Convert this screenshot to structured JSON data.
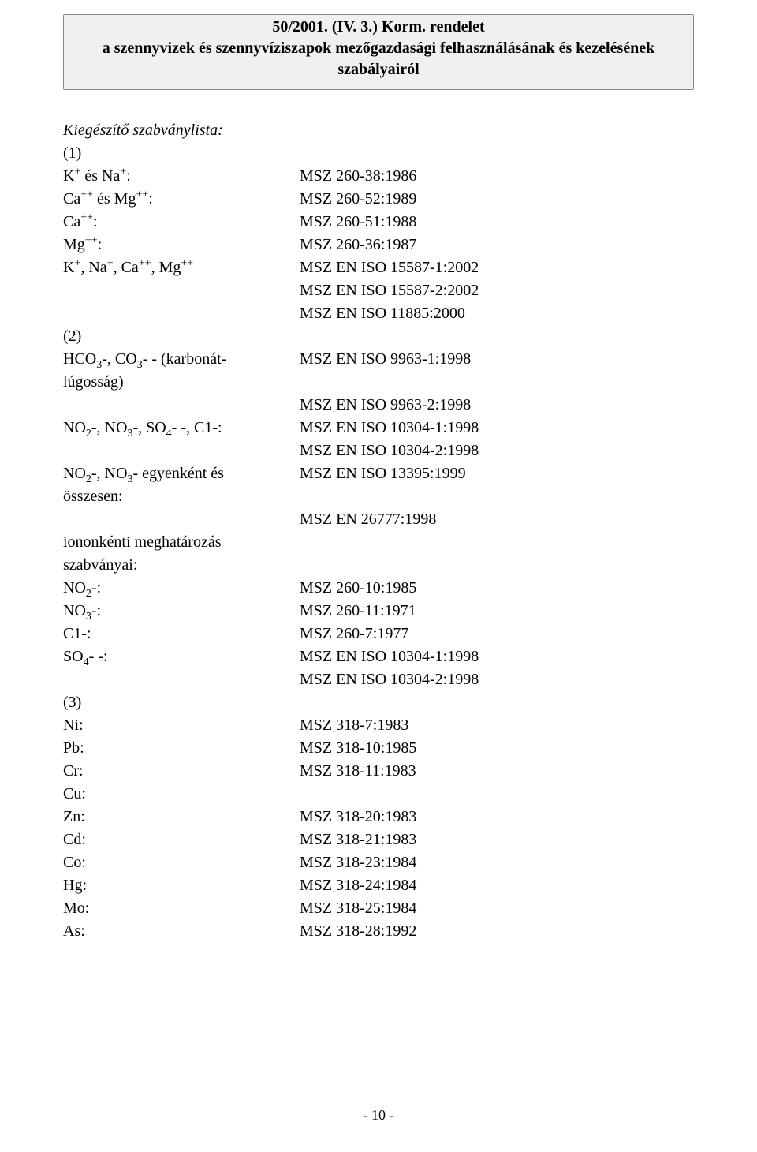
{
  "header": {
    "line1": "50/2001. (IV. 3.) Korm. rendelet",
    "line2": "a szennyvizek és szennyvíziszapok mezőgazdasági felhasználásának és kezelésének szabályairól"
  },
  "section_title": "Kiegészítő szabványlista:",
  "groups": [
    {
      "label": "(1)",
      "rows": [
        {
          "l": "K<sup>+</sup> és Na<sup>+</sup>:",
          "r": "MSZ 260-38:1986"
        },
        {
          "l": "Ca<sup>++</sup> és Mg<sup>++</sup>:",
          "r": "MSZ 260-52:1989"
        },
        {
          "l": "Ca<sup>++</sup>:",
          "r": "MSZ 260-51:1988"
        },
        {
          "l": "Mg<sup>++</sup>:",
          "r": "MSZ 260-36:1987"
        },
        {
          "l": "K<sup>+</sup>, Na<sup>+</sup>, Ca<sup>++</sup>, Mg<sup>++</sup>",
          "r": "MSZ EN ISO 15587-1:2002"
        },
        {
          "l": "",
          "r": "MSZ EN ISO 15587-2:2002"
        },
        {
          "l": "",
          "r": "MSZ EN ISO 11885:2000"
        }
      ]
    },
    {
      "label": "(2)",
      "rows": [
        {
          "l": "HCO<sub>3</sub>-, CO<sub>3</sub>- - (karbonát-",
          "r": "MSZ EN ISO 9963-1:1998"
        },
        {
          "l": "lúgosság)",
          "r": ""
        },
        {
          "l": "",
          "r": "MSZ EN ISO 9963-2:1998"
        },
        {
          "l": "NO<sub>2</sub>-, NO<sub>3</sub>-, SO<sub>4</sub>- -, C1-:",
          "r": "MSZ EN ISO 10304-1:1998"
        },
        {
          "l": "",
          "r": "MSZ EN ISO 10304-2:1998"
        },
        {
          "l": "NO<sub>2</sub>-, NO<sub>3</sub>- egyenként és",
          "r": "MSZ EN ISO 13395:1999"
        },
        {
          "l": "összesen:",
          "r": ""
        },
        {
          "l": "",
          "r": "MSZ EN 26777:1998"
        },
        {
          "l": "iononkénti meghatározás",
          "r": ""
        },
        {
          "l": "szabványai:",
          "r": ""
        },
        {
          "l": "NO<sub>2</sub>-:",
          "r": "MSZ 260-10:1985"
        },
        {
          "l": "NO<sub>3</sub>-:",
          "r": "MSZ 260-11:1971"
        },
        {
          "l": "C1-:",
          "r": "MSZ 260-7:1977"
        },
        {
          "l": "SO<sub>4</sub>- -:",
          "r": "MSZ EN ISO 10304-1:1998"
        },
        {
          "l": "",
          "r": "MSZ EN ISO 10304-2:1998"
        }
      ]
    },
    {
      "label": "(3)",
      "rows": [
        {
          "l": "Ni:",
          "r": "MSZ 318-7:1983"
        },
        {
          "l": "Pb:",
          "r": "MSZ 318-10:1985"
        },
        {
          "l": "Cr:",
          "r": "MSZ 318-11:1983"
        },
        {
          "l": "Cu:",
          "r": ""
        },
        {
          "l": "Zn:",
          "r": "MSZ 318-20:1983"
        },
        {
          "l": "Cd:",
          "r": "MSZ 318-21:1983"
        },
        {
          "l": "Co:",
          "r": "MSZ 318-23:1984"
        },
        {
          "l": "Hg:",
          "r": "MSZ 318-24:1984"
        },
        {
          "l": "Mo:",
          "r": "MSZ 318-25:1984"
        },
        {
          "l": "As:",
          "r": "MSZ 318-28:1992"
        }
      ]
    }
  ],
  "footer": "- 10 -"
}
